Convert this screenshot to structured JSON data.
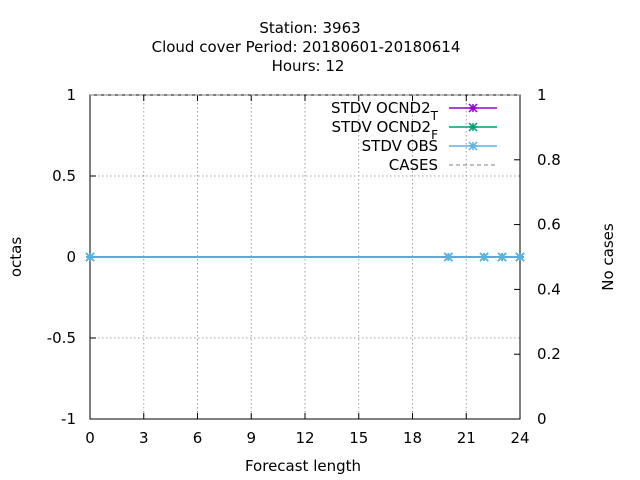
{
  "chart_data": {
    "type": "line",
    "title_lines": [
      "Station:     3963",
      "Cloud cover   Period: 20180601-20180614",
      "Hours:  12"
    ],
    "xlabel": "Forecast length",
    "ylabel": "octas",
    "y2label": "No cases",
    "xlim": [
      0,
      24
    ],
    "ylim": [
      -1,
      1
    ],
    "y2lim": [
      0,
      1
    ],
    "xticks": [
      "0",
      "3",
      "6",
      "9",
      "12",
      "15",
      "18",
      "21",
      "24"
    ],
    "yticks": [
      "-1",
      "-0.5",
      "0",
      "0.5",
      "1"
    ],
    "y2ticks": [
      "0",
      "0.2",
      "0.4",
      "0.6",
      "0.8",
      "1"
    ],
    "grid": true,
    "legend_position": "top-right",
    "series": [
      {
        "name": "STDV OCND2",
        "subscript": "T",
        "color": "#9400d3",
        "marker": "asterisk",
        "x": [
          0,
          20,
          22,
          23,
          24
        ],
        "y": [
          0,
          0,
          0,
          0,
          0
        ]
      },
      {
        "name": "STDV OCND2",
        "subscript": "F",
        "color": "#009e73",
        "marker": "asterisk",
        "x": [
          0,
          20,
          22,
          23,
          24
        ],
        "y": [
          0,
          0,
          0,
          0,
          0
        ]
      },
      {
        "name": "STDV OBS",
        "subscript": "",
        "color": "#56b4e9",
        "marker": "asterisk",
        "x": [
          0,
          20,
          22,
          23,
          24
        ],
        "y": [
          0,
          0,
          0,
          0,
          0
        ]
      },
      {
        "name": "CASES",
        "subscript": "",
        "color": "#808080",
        "dashed": true,
        "axis": "y2",
        "x": [
          0,
          24
        ],
        "y": [
          1,
          1
        ]
      }
    ]
  }
}
